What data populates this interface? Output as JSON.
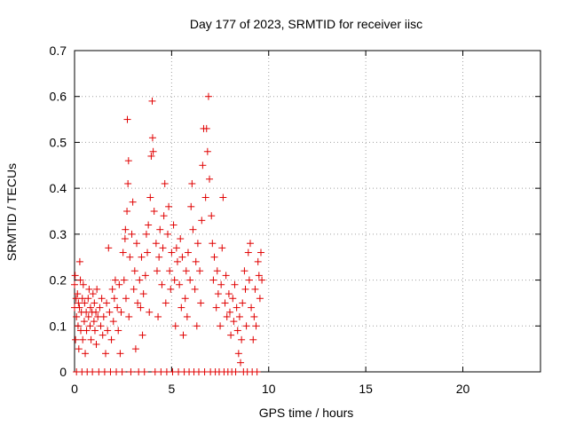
{
  "chart_data": {
    "type": "scatter",
    "title": "Day 177 of 2023, SRMTID for receiver iisc",
    "xlabel": "GPS time / hours",
    "ylabel": "SRMTID / TECUs",
    "xlim": [
      0,
      24
    ],
    "ylim": [
      0,
      0.7
    ],
    "xticks": [
      0,
      5,
      10,
      15,
      20
    ],
    "xtick_labels": [
      "0",
      "5",
      "10",
      "15",
      "20"
    ],
    "yticks": [
      0,
      0.1,
      0.2,
      0.3,
      0.4,
      0.5,
      0.6,
      0.7
    ],
    "ytick_labels": [
      "0",
      "0.1",
      "0.2",
      "0.3",
      "0.4",
      "0.5",
      "0.6",
      "0.7"
    ],
    "grid": true,
    "legend": "none",
    "marker": "+",
    "marker_color": "#e00000",
    "series": [
      {
        "values": [
          [
            0.0,
            0.19
          ],
          [
            0.0,
            0.14
          ],
          [
            0.03,
            0.21
          ],
          [
            0.05,
            0.07
          ],
          [
            0.08,
            0.16
          ],
          [
            0.1,
            0.12
          ],
          [
            0.1,
            0.0
          ],
          [
            0.15,
            0.17
          ],
          [
            0.18,
            0.1
          ],
          [
            0.2,
            0.15
          ],
          [
            0.22,
            0.05
          ],
          [
            0.25,
            0.14
          ],
          [
            0.27,
            0.24
          ],
          [
            0.3,
            0.2
          ],
          [
            0.32,
            0.09
          ],
          [
            0.35,
            0.13
          ],
          [
            0.38,
            0.0
          ],
          [
            0.4,
            0.16
          ],
          [
            0.42,
            0.07
          ],
          [
            0.45,
            0.19
          ],
          [
            0.5,
            0.11
          ],
          [
            0.52,
            0.15
          ],
          [
            0.55,
            0.04
          ],
          [
            0.6,
            0.13
          ],
          [
            0.62,
            0.09
          ],
          [
            0.65,
            0.0
          ],
          [
            0.7,
            0.16
          ],
          [
            0.72,
            0.12
          ],
          [
            0.75,
            0.18
          ],
          [
            0.8,
            0.1
          ],
          [
            0.82,
            0.14
          ],
          [
            0.85,
            0.07
          ],
          [
            0.9,
            0.13
          ],
          [
            0.92,
            0.0
          ],
          [
            0.95,
            0.17
          ],
          [
            1.0,
            0.11
          ],
          [
            1.02,
            0.15
          ],
          [
            1.05,
            0.09
          ],
          [
            1.1,
            0.13
          ],
          [
            1.12,
            0.06
          ],
          [
            1.15,
            0.18
          ],
          [
            1.2,
            0.12
          ],
          [
            1.25,
            0.0
          ],
          [
            1.3,
            0.14
          ],
          [
            1.35,
            0.1
          ],
          [
            1.4,
            0.16
          ],
          [
            1.45,
            0.08
          ],
          [
            1.5,
            0.12
          ],
          [
            1.55,
            0.0
          ],
          [
            1.6,
            0.04
          ],
          [
            1.65,
            0.15
          ],
          [
            1.7,
            0.09
          ],
          [
            1.75,
            0.27
          ],
          [
            1.8,
            0.13
          ],
          [
            1.85,
            0.0
          ],
          [
            1.9,
            0.07
          ],
          [
            1.95,
            0.18
          ],
          [
            2.0,
            0.11
          ],
          [
            2.05,
            0.16
          ],
          [
            2.1,
            0.2
          ],
          [
            2.15,
            0.0
          ],
          [
            2.2,
            0.14
          ],
          [
            2.25,
            0.09
          ],
          [
            2.3,
            0.19
          ],
          [
            2.35,
            0.04
          ],
          [
            2.4,
            0.13
          ],
          [
            2.45,
            0.0
          ],
          [
            2.5,
            0.26
          ],
          [
            2.55,
            0.2
          ],
          [
            2.6,
            0.29
          ],
          [
            2.62,
            0.31
          ],
          [
            2.65,
            0.16
          ],
          [
            2.7,
            0.35
          ],
          [
            2.72,
            0.55
          ],
          [
            2.75,
            0.41
          ],
          [
            2.78,
            0.46
          ],
          [
            2.8,
            0.12
          ],
          [
            2.85,
            0.25
          ],
          [
            2.9,
            0.0
          ],
          [
            2.95,
            0.3
          ],
          [
            3.0,
            0.37
          ],
          [
            3.05,
            0.18
          ],
          [
            3.1,
            0.22
          ],
          [
            3.15,
            0.05
          ],
          [
            3.2,
            0.28
          ],
          [
            3.25,
            0.15
          ],
          [
            3.3,
            0.0
          ],
          [
            3.35,
            0.2
          ],
          [
            3.4,
            0.14
          ],
          [
            3.45,
            0.25
          ],
          [
            3.5,
            0.08
          ],
          [
            3.55,
            0.17
          ],
          [
            3.6,
            0.0
          ],
          [
            3.65,
            0.21
          ],
          [
            3.7,
            0.3
          ],
          [
            3.75,
            0.26
          ],
          [
            3.8,
            0.32
          ],
          [
            3.85,
            0.13
          ],
          [
            3.9,
            0.38
          ],
          [
            3.95,
            0.47
          ],
          [
            4.0,
            0.59
          ],
          [
            4.02,
            0.51
          ],
          [
            4.05,
            0.48
          ],
          [
            4.1,
            0.35
          ],
          [
            4.15,
            0.0
          ],
          [
            4.2,
            0.28
          ],
          [
            4.25,
            0.22
          ],
          [
            4.3,
            0.12
          ],
          [
            4.35,
            0.25
          ],
          [
            4.4,
            0.31
          ],
          [
            4.45,
            0.0
          ],
          [
            4.5,
            0.19
          ],
          [
            4.55,
            0.27
          ],
          [
            4.6,
            0.34
          ],
          [
            4.65,
            0.41
          ],
          [
            4.7,
            0.15
          ],
          [
            4.75,
            0.0
          ],
          [
            4.8,
            0.3
          ],
          [
            4.85,
            0.36
          ],
          [
            4.9,
            0.22
          ],
          [
            4.95,
            0.18
          ],
          [
            5.0,
            0.26
          ],
          [
            5.05,
            0.0
          ],
          [
            5.1,
            0.32
          ],
          [
            5.15,
            0.2
          ],
          [
            5.2,
            0.1
          ],
          [
            5.25,
            0.27
          ],
          [
            5.3,
            0.24
          ],
          [
            5.35,
            0.0
          ],
          [
            5.4,
            0.19
          ],
          [
            5.45,
            0.29
          ],
          [
            5.5,
            0.14
          ],
          [
            5.55,
            0.25
          ],
          [
            5.6,
            0.08
          ],
          [
            5.65,
            0.0
          ],
          [
            5.7,
            0.16
          ],
          [
            5.75,
            0.22
          ],
          [
            5.8,
            0.12
          ],
          [
            5.85,
            0.26
          ],
          [
            5.9,
            0.0
          ],
          [
            5.95,
            0.2
          ],
          [
            6.0,
            0.36
          ],
          [
            6.05,
            0.41
          ],
          [
            6.1,
            0.31
          ],
          [
            6.15,
            0.0
          ],
          [
            6.2,
            0.18
          ],
          [
            6.25,
            0.24
          ],
          [
            6.3,
            0.1
          ],
          [
            6.35,
            0.28
          ],
          [
            6.4,
            0.0
          ],
          [
            6.45,
            0.22
          ],
          [
            6.5,
            0.15
          ],
          [
            6.55,
            0.33
          ],
          [
            6.6,
            0.45
          ],
          [
            6.65,
            0.53
          ],
          [
            6.7,
            0.0
          ],
          [
            6.75,
            0.38
          ],
          [
            6.8,
            0.53
          ],
          [
            6.85,
            0.48
          ],
          [
            6.9,
            0.6
          ],
          [
            6.95,
            0.42
          ],
          [
            7.0,
            0.0
          ],
          [
            7.05,
            0.34
          ],
          [
            7.1,
            0.28
          ],
          [
            7.15,
            0.2
          ],
          [
            7.2,
            0.25
          ],
          [
            7.25,
            0.0
          ],
          [
            7.3,
            0.14
          ],
          [
            7.35,
            0.22
          ],
          [
            7.4,
            0.17
          ],
          [
            7.45,
            0.0
          ],
          [
            7.5,
            0.1
          ],
          [
            7.55,
            0.19
          ],
          [
            7.6,
            0.27
          ],
          [
            7.65,
            0.38
          ],
          [
            7.7,
            0.0
          ],
          [
            7.75,
            0.15
          ],
          [
            7.8,
            0.21
          ],
          [
            7.85,
            0.12
          ],
          [
            7.9,
            0.0
          ],
          [
            7.95,
            0.17
          ],
          [
            8.0,
            0.13
          ],
          [
            8.05,
            0.08
          ],
          [
            8.1,
            0.0
          ],
          [
            8.15,
            0.16
          ],
          [
            8.2,
            0.11
          ],
          [
            8.25,
            0.19
          ],
          [
            8.3,
            0.0
          ],
          [
            8.35,
            0.14
          ],
          [
            8.4,
            0.09
          ],
          [
            8.45,
            0.04
          ],
          [
            8.5,
            0.12
          ],
          [
            8.55,
            0.02
          ],
          [
            8.6,
            0.07
          ],
          [
            8.65,
            0.15
          ],
          [
            8.7,
            0.0
          ],
          [
            8.75,
            0.22
          ],
          [
            8.8,
            0.18
          ],
          [
            8.85,
            0.1
          ],
          [
            8.9,
            0.0
          ],
          [
            8.95,
            0.26
          ],
          [
            9.0,
            0.2
          ],
          [
            9.05,
            0.28
          ],
          [
            9.1,
            0.14
          ],
          [
            9.15,
            0.0
          ],
          [
            9.2,
            0.07
          ],
          [
            9.25,
            0.12
          ],
          [
            9.3,
            0.18
          ],
          [
            9.35,
            0.1
          ],
          [
            9.4,
            0.0
          ],
          [
            9.45,
            0.24
          ],
          [
            9.5,
            0.21
          ],
          [
            9.55,
            0.16
          ],
          [
            9.6,
            0.26
          ],
          [
            9.65,
            0.2
          ]
        ]
      }
    ]
  }
}
